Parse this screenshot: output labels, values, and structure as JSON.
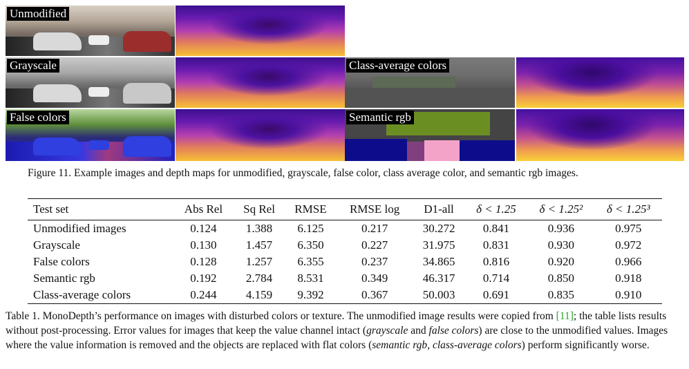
{
  "figure": {
    "panels": [
      {
        "label": "Unmodified"
      },
      {
        "label": "Grayscale"
      },
      {
        "label": "False colors"
      },
      {
        "label": "Class-average colors"
      },
      {
        "label": "Semantic rgb"
      }
    ],
    "caption": "Figure 11. Example images and depth maps for unmodified, grayscale, false color, class average color, and semantic rgb images."
  },
  "table": {
    "headers": [
      "Test set",
      "Abs Rel",
      "Sq Rel",
      "RMSE",
      "RMSE log",
      "D1-all",
      "δ < 1.25",
      "δ < 1.25²",
      "δ < 1.25³"
    ],
    "rows": [
      [
        "Unmodified images",
        "0.124",
        "1.388",
        "6.125",
        "0.217",
        "30.272",
        "0.841",
        "0.936",
        "0.975"
      ],
      [
        "Grayscale",
        "0.130",
        "1.457",
        "6.350",
        "0.227",
        "31.975",
        "0.831",
        "0.930",
        "0.972"
      ],
      [
        "False colors",
        "0.128",
        "1.257",
        "6.355",
        "0.237",
        "34.865",
        "0.816",
        "0.920",
        "0.966"
      ],
      [
        "Semantic rgb",
        "0.192",
        "2.784",
        "8.531",
        "0.349",
        "46.317",
        "0.714",
        "0.850",
        "0.918"
      ],
      [
        "Class-average colors",
        "0.244",
        "4.159",
        "9.392",
        "0.367",
        "50.003",
        "0.691",
        "0.835",
        "0.910"
      ]
    ],
    "caption": {
      "part1": "Table 1. MonoDepth’s performance on images with disturbed colors or texture. The unmodified image results were copied from ",
      "ref": "[11]",
      "part2": "; the table lists results without post-processing. Error values for images that keep the value channel intact (",
      "em1": "grayscale",
      "part3": " and ",
      "em2": "false colors",
      "part4": ") are close to the unmodified values. Images where the value information is removed and the objects are replaced with flat colors (",
      "em3": "semantic rgb",
      "part5": ", ",
      "em4": "class-average colors",
      "part6": ") perform significantly worse."
    }
  }
}
